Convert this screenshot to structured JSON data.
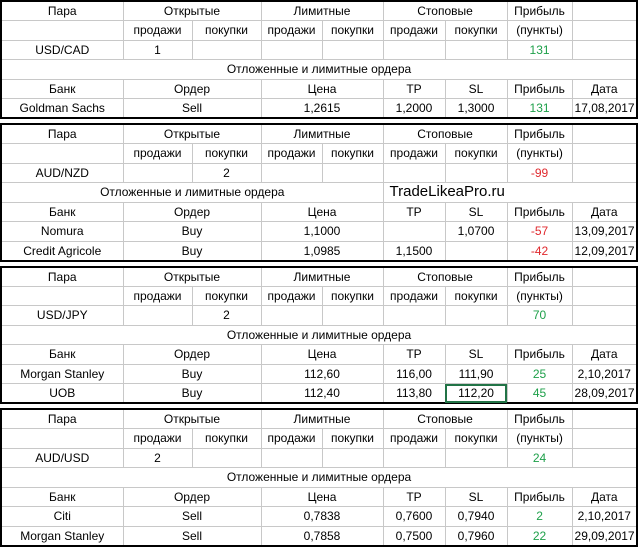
{
  "brand": "TradeLikeaPro.ru",
  "headers": {
    "pair": "Пара",
    "open": "Открытые",
    "limit": "Лимитные",
    "stop": "Стоповые",
    "profit": "Прибыль",
    "sell": "продажи",
    "buy": "покупки",
    "points": "(пункты)",
    "pending": "Отложенные и лимитные ордера",
    "bank": "Банк",
    "order": "Ордер",
    "price": "Цена",
    "tp": "TP",
    "sl": "SL",
    "date": "Дата"
  },
  "blocks": [
    {
      "pair": "USD/CAD",
      "open_sell": "1",
      "open_buy": "",
      "limit_sell": "",
      "limit_buy": "",
      "stop_sell": "",
      "stop_buy": "",
      "profit": "131",
      "profit_color": "#1ea04a",
      "orders": [
        {
          "bank": "Goldman Sachs",
          "order": "Sell",
          "price": "1,2615",
          "tp": "1,2000",
          "sl": "1,3000",
          "profit": "131",
          "profit_color": "#1ea04a",
          "date": "17,08,2017"
        }
      ]
    },
    {
      "pair": "AUD/NZD",
      "open_sell": "",
      "open_buy": "2",
      "limit_sell": "",
      "limit_buy": "",
      "stop_sell": "",
      "stop_buy": "",
      "profit": "-99",
      "profit_color": "#e0282d",
      "orders": [
        {
          "bank": "Nomura",
          "order": "Buy",
          "price": "1,1000",
          "tp": "",
          "sl": "1,0700",
          "profit": "-57",
          "profit_color": "#e0282d",
          "date": "13,09,2017"
        },
        {
          "bank": "Credit Agricole",
          "order": "Buy",
          "price": "1,0985",
          "tp": "1,1500",
          "sl": "",
          "profit": "-42",
          "profit_color": "#e0282d",
          "date": "12,09,2017"
        }
      ]
    },
    {
      "pair": "USD/JPY",
      "open_sell": "",
      "open_buy": "2",
      "limit_sell": "",
      "limit_buy": "",
      "stop_sell": "",
      "stop_buy": "",
      "profit": "70",
      "profit_color": "#1ea04a",
      "orders": [
        {
          "bank": "Morgan Stanley",
          "order": "Buy",
          "price": "112,60",
          "tp": "116,00",
          "sl": "111,90",
          "profit": "25",
          "profit_color": "#1ea04a",
          "date": "2,10,2017"
        },
        {
          "bank": "UOB",
          "order": "Buy",
          "price": "112,40",
          "tp": "113,80",
          "sl": "112,20",
          "profit": "45",
          "profit_color": "#1ea04a",
          "date": "28,09,2017"
        }
      ]
    },
    {
      "pair": "AUD/USD",
      "open_sell": "2",
      "open_buy": "",
      "limit_sell": "",
      "limit_buy": "",
      "stop_sell": "",
      "stop_buy": "",
      "profit": "24",
      "profit_color": "#1ea04a",
      "orders": [
        {
          "bank": "Citi",
          "order": "Sell",
          "price": "0,7838",
          "tp": "0,7600",
          "sl": "0,7940",
          "profit": "2",
          "profit_color": "#1ea04a",
          "date": "2,10,2017"
        },
        {
          "bank": "Morgan Stanley",
          "order": "Sell",
          "price": "0,7858",
          "tp": "0,7500",
          "sl": "0,7960",
          "profit": "22",
          "profit_color": "#1ea04a",
          "date": "29,09,2017"
        }
      ]
    }
  ]
}
